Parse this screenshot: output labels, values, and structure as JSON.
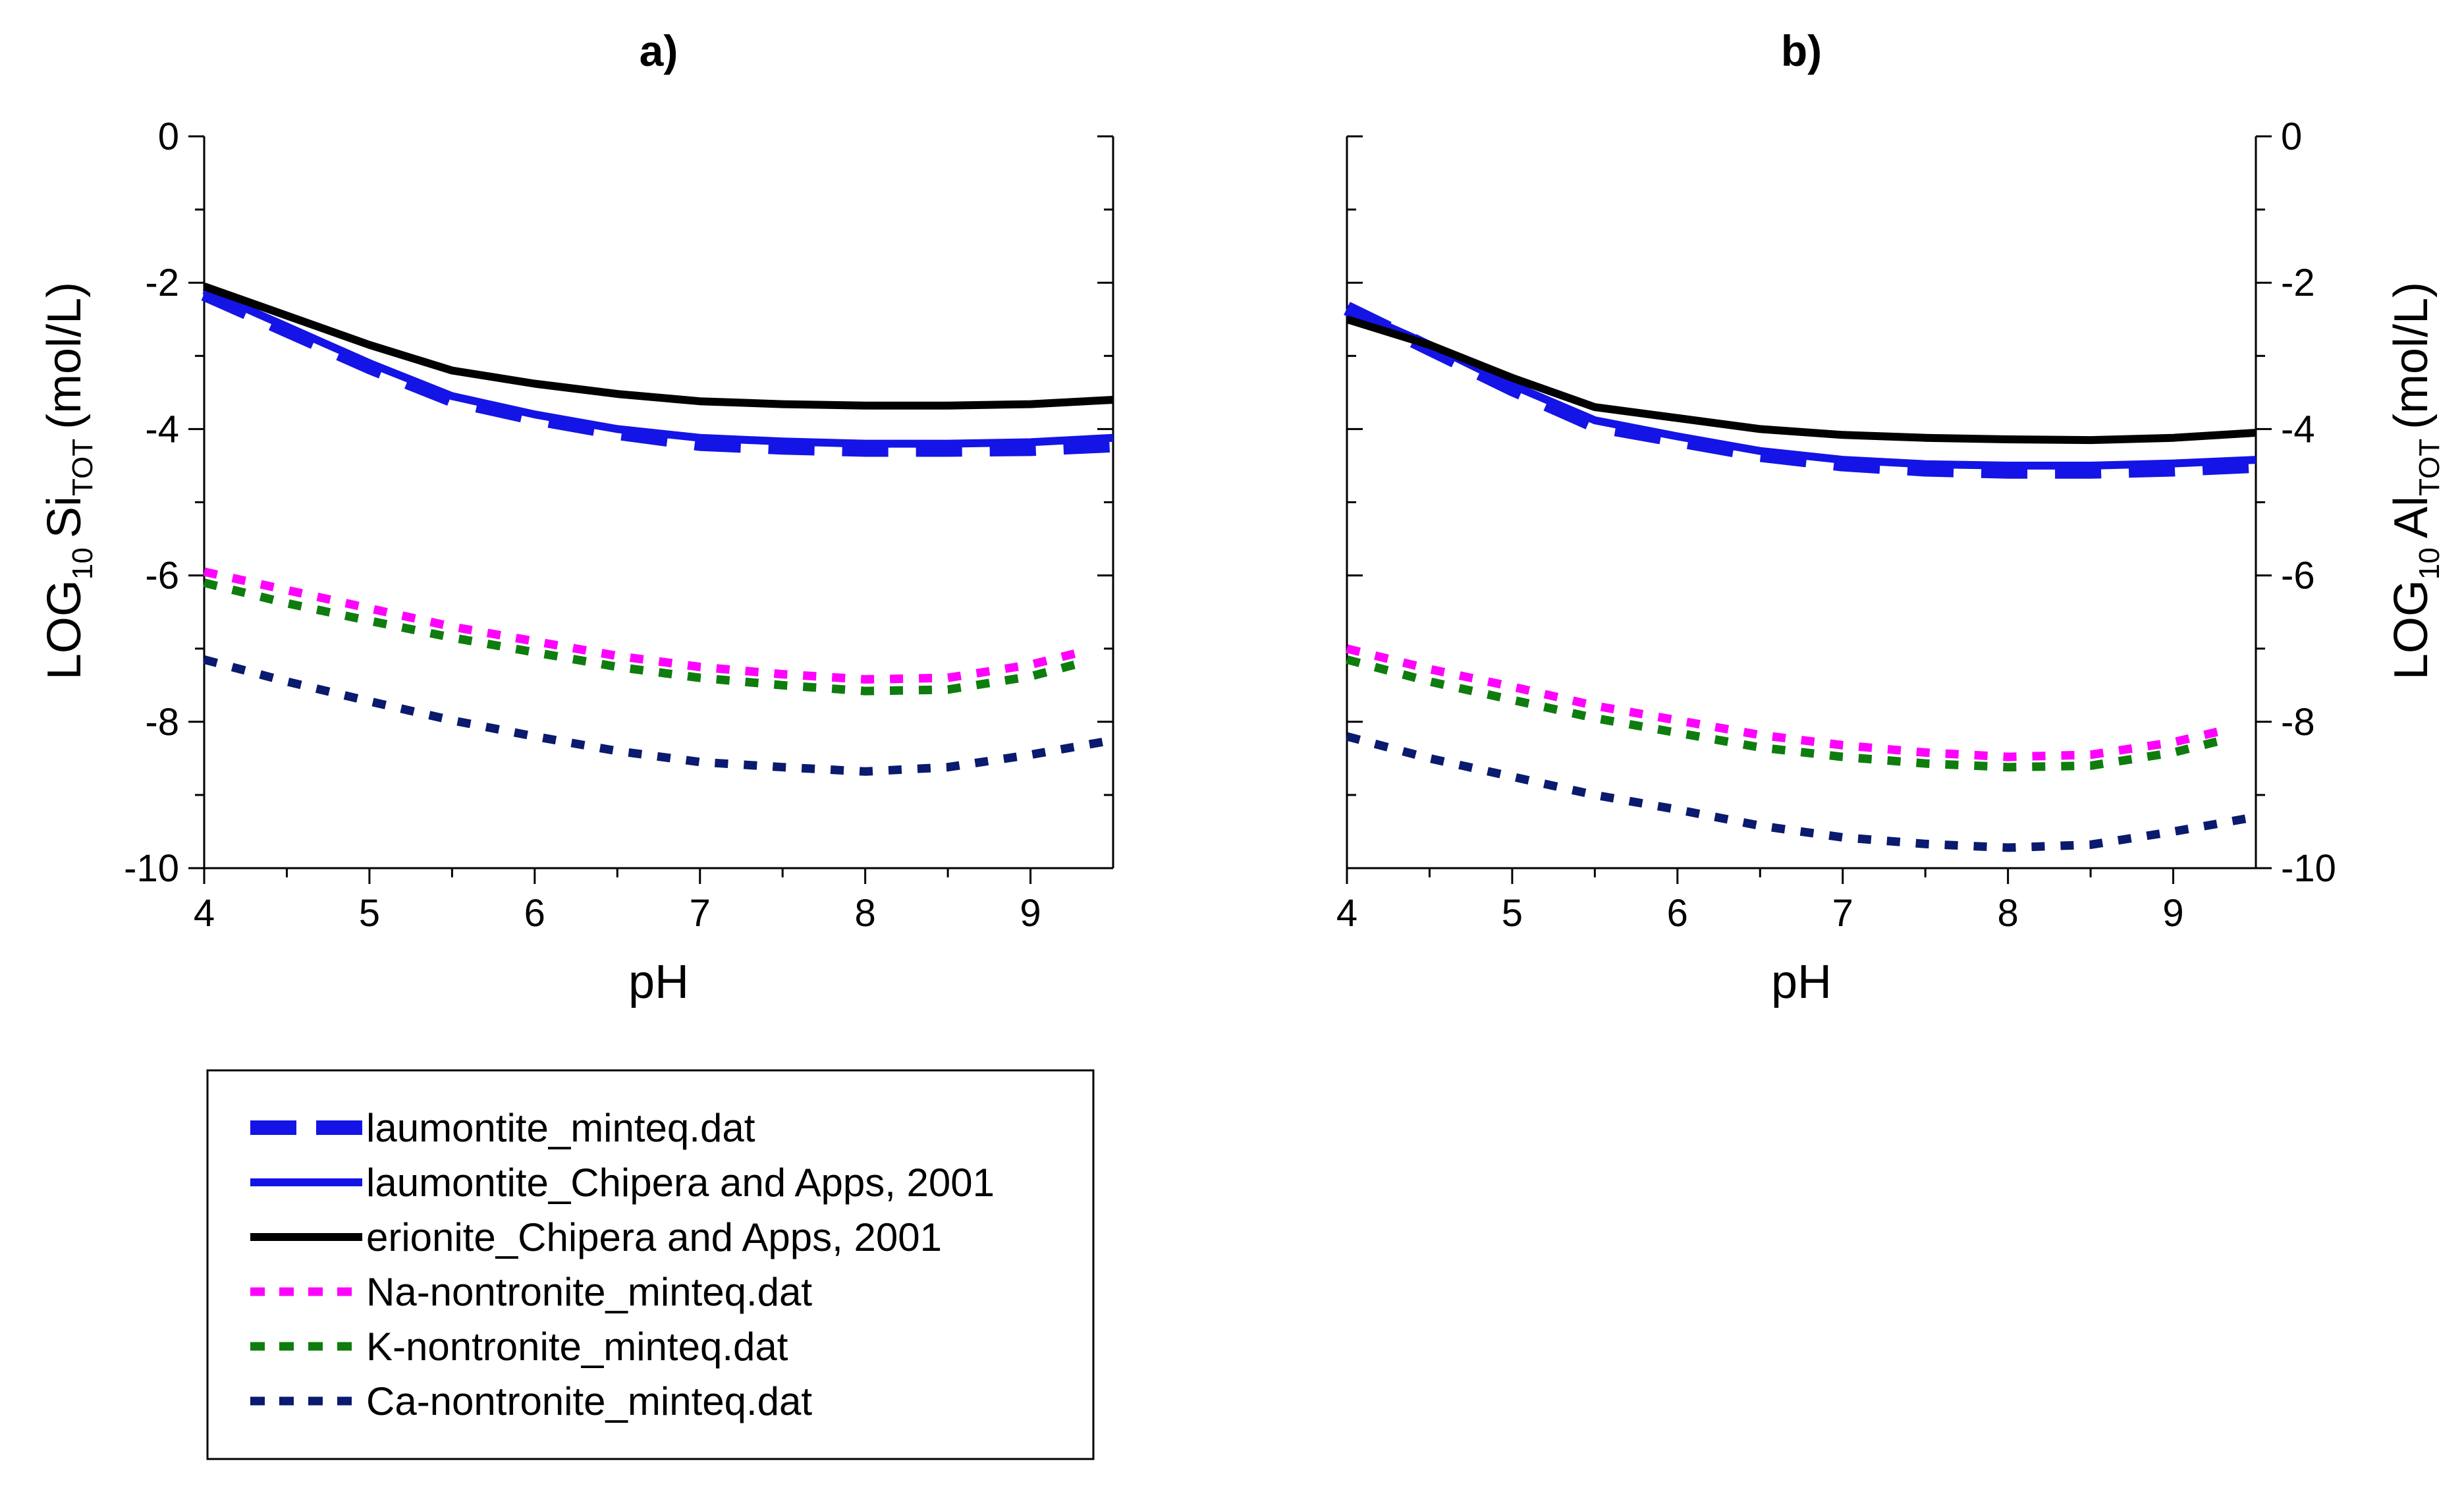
{
  "chart_data": [
    {
      "type": "line",
      "panel_label": "a)",
      "xlabel": "pH",
      "ylabel": {
        "prefix": "LOG",
        "prefix_sub": "10",
        "species": "Si",
        "species_sub": "TOT",
        "unit": "(mol/L)"
      },
      "y_axis_side": "left",
      "xlim": [
        4,
        9.5
      ],
      "ylim": [
        -10,
        0
      ],
      "x_ticks": [
        "4",
        "5",
        "6",
        "7",
        "8",
        "9"
      ],
      "y_ticks": [
        "0",
        "-2",
        "-4",
        "-6",
        "-8",
        "-10"
      ],
      "series": [
        {
          "name": "laumontite_minteq.dat",
          "x": [
            4.0,
            4.5,
            5.0,
            5.5,
            6.0,
            6.5,
            7.0,
            7.5,
            8.0,
            8.5,
            9.0,
            9.5
          ],
          "y": [
            -2.15,
            -2.65,
            -3.15,
            -3.6,
            -3.85,
            -4.05,
            -4.2,
            -4.25,
            -4.28,
            -4.28,
            -4.27,
            -4.22
          ]
        },
        {
          "name": "laumontite_Chipera and Apps, 2001",
          "x": [
            4.0,
            4.5,
            5.0,
            5.5,
            6.0,
            6.5,
            7.0,
            7.5,
            8.0,
            8.5,
            9.0,
            9.5
          ],
          "y": [
            -2.1,
            -2.6,
            -3.1,
            -3.55,
            -3.8,
            -4.0,
            -4.12,
            -4.17,
            -4.2,
            -4.2,
            -4.18,
            -4.12
          ]
        },
        {
          "name": "erionite_Chipera and Apps, 2001",
          "x": [
            4.0,
            4.5,
            5.0,
            5.5,
            6.0,
            6.5,
            7.0,
            7.5,
            8.0,
            8.5,
            9.0,
            9.5
          ],
          "y": [
            -2.05,
            -2.45,
            -2.85,
            -3.2,
            -3.38,
            -3.52,
            -3.62,
            -3.66,
            -3.68,
            -3.68,
            -3.66,
            -3.6
          ]
        },
        {
          "name": "Na-nontronite_minteq.dat",
          "x": [
            4.0,
            4.5,
            5.0,
            5.5,
            6.0,
            6.5,
            7.0,
            7.5,
            8.0,
            8.5,
            9.0,
            9.3
          ],
          "y": [
            -5.95,
            -6.2,
            -6.45,
            -6.7,
            -6.9,
            -7.1,
            -7.25,
            -7.35,
            -7.42,
            -7.4,
            -7.22,
            -7.05
          ]
        },
        {
          "name": "K-nontronite_minteq.dat",
          "x": [
            4.0,
            4.5,
            5.0,
            5.5,
            6.0,
            6.5,
            7.0,
            7.5,
            8.0,
            8.5,
            9.0,
            9.3
          ],
          "y": [
            -6.1,
            -6.38,
            -6.62,
            -6.85,
            -7.05,
            -7.25,
            -7.4,
            -7.5,
            -7.58,
            -7.56,
            -7.38,
            -7.2
          ]
        },
        {
          "name": "Ca-nontronite_minteq.dat",
          "x": [
            4.0,
            4.5,
            5.0,
            5.5,
            6.0,
            6.5,
            7.0,
            7.5,
            8.0,
            8.5,
            9.0,
            9.5
          ],
          "y": [
            -7.15,
            -7.45,
            -7.72,
            -7.98,
            -8.2,
            -8.4,
            -8.55,
            -8.62,
            -8.68,
            -8.62,
            -8.45,
            -8.25
          ]
        }
      ]
    },
    {
      "type": "line",
      "panel_label": "b)",
      "xlabel": "pH",
      "ylabel": {
        "prefix": "LOG",
        "prefix_sub": "10",
        "species": "Al",
        "species_sub": "TOT",
        "unit": "(mol/L)"
      },
      "y_axis_side": "right",
      "xlim": [
        4,
        9.5
      ],
      "ylim": [
        -10,
        0
      ],
      "x_ticks": [
        "4",
        "5",
        "6",
        "7",
        "8",
        "9"
      ],
      "y_ticks": [
        "0",
        "-2",
        "-4",
        "-6",
        "-8",
        "-10"
      ],
      "series": [
        {
          "name": "laumontite_minteq.dat",
          "x": [
            4.0,
            4.5,
            5.0,
            5.5,
            6.0,
            6.5,
            7.0,
            7.5,
            8.0,
            8.5,
            9.0,
            9.5
          ],
          "y": [
            -2.35,
            -2.9,
            -3.45,
            -3.95,
            -4.15,
            -4.35,
            -4.48,
            -4.55,
            -4.58,
            -4.58,
            -4.55,
            -4.5
          ]
        },
        {
          "name": "laumontite_Chipera and Apps, 2001",
          "x": [
            4.0,
            4.5,
            5.0,
            5.5,
            6.0,
            6.5,
            7.0,
            7.5,
            8.0,
            8.5,
            9.0,
            9.5
          ],
          "y": [
            -2.35,
            -2.85,
            -3.4,
            -3.88,
            -4.1,
            -4.3,
            -4.42,
            -4.48,
            -4.5,
            -4.5,
            -4.47,
            -4.42
          ]
        },
        {
          "name": "erionite_Chipera and Apps, 2001",
          "x": [
            4.0,
            4.5,
            5.0,
            5.5,
            6.0,
            6.5,
            7.0,
            7.5,
            8.0,
            8.5,
            9.0,
            9.5
          ],
          "y": [
            -2.5,
            -2.85,
            -3.3,
            -3.7,
            -3.85,
            -4.0,
            -4.08,
            -4.12,
            -4.14,
            -4.15,
            -4.12,
            -4.05
          ]
        },
        {
          "name": "Na-nontronite_minteq.dat",
          "x": [
            4.0,
            4.5,
            5.0,
            5.5,
            6.0,
            6.5,
            7.0,
            7.5,
            8.0,
            8.5,
            9.0,
            9.3
          ],
          "y": [
            -7.0,
            -7.28,
            -7.52,
            -7.78,
            -7.98,
            -8.18,
            -8.32,
            -8.42,
            -8.48,
            -8.45,
            -8.28,
            -8.12
          ]
        },
        {
          "name": "K-nontronite_minteq.dat",
          "x": [
            4.0,
            4.5,
            5.0,
            5.5,
            6.0,
            6.5,
            7.0,
            7.5,
            8.0,
            8.5,
            9.0,
            9.3
          ],
          "y": [
            -7.15,
            -7.45,
            -7.7,
            -7.95,
            -8.15,
            -8.35,
            -8.48,
            -8.57,
            -8.62,
            -8.6,
            -8.42,
            -8.25
          ]
        },
        {
          "name": "Ca-nontronite_minteq.dat",
          "x": [
            4.0,
            4.5,
            5.0,
            5.5,
            6.0,
            6.5,
            7.0,
            7.5,
            8.0,
            8.5,
            9.0,
            9.5
          ],
          "y": [
            -8.2,
            -8.5,
            -8.75,
            -9.0,
            -9.2,
            -9.42,
            -9.58,
            -9.67,
            -9.72,
            -9.68,
            -9.5,
            -9.3
          ]
        }
      ]
    }
  ],
  "legend": {
    "placement": "bottom-left",
    "entries": [
      {
        "label": "laumontite_minteq.dat",
        "color": "#1414e6",
        "style": "long-dash"
      },
      {
        "label": "laumontite_Chipera and Apps, 2001",
        "color": "#1414e6",
        "style": "solid"
      },
      {
        "label": "erionite_Chipera and Apps, 2001",
        "color": "#000000",
        "style": "solid"
      },
      {
        "label": "Na-nontronite_minteq.dat",
        "color": "#ff00ff",
        "style": "short-dash"
      },
      {
        "label": "K-nontronite_minteq.dat",
        "color": "#0e7d0e",
        "style": "short-dash"
      },
      {
        "label": "Ca-nontronite_minteq.dat",
        "color": "#0a1a6e",
        "style": "short-dash"
      }
    ]
  }
}
